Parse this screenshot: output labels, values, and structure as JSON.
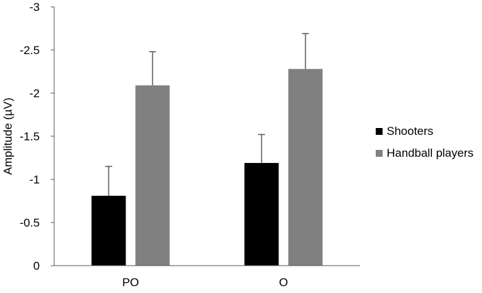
{
  "chart_data": {
    "type": "bar",
    "title": "",
    "xlabel": "",
    "ylabel": "Amplitude (µV)",
    "categories": [
      "PO",
      "O"
    ],
    "ylim": [
      0,
      -3
    ],
    "yticks": [
      "0",
      "-0.5",
      "-1",
      "-1.5",
      "-2",
      "-2.5",
      "-3"
    ],
    "y_axis_inverted": true,
    "grid": false,
    "legend_position": "right",
    "series": [
      {
        "name": "Shooters",
        "color": "#000000",
        "values": [
          -0.81,
          -1.19
        ],
        "error": [
          0.34,
          0.33
        ]
      },
      {
        "name": "Handball players",
        "color": "#808080",
        "values": [
          -2.09,
          -2.28
        ],
        "error": [
          0.39,
          0.41
        ]
      }
    ]
  }
}
